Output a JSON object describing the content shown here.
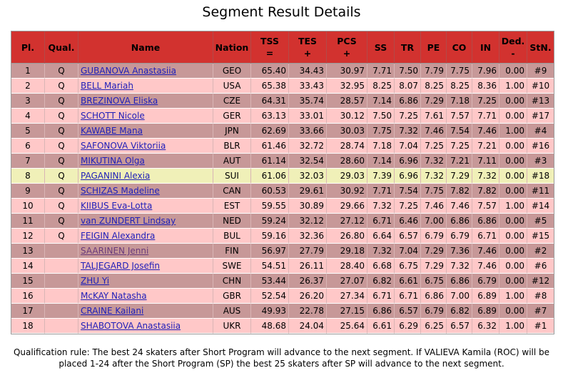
{
  "title": "Segment Result Details",
  "columns": [
    {
      "l1": "Pl.",
      "l2": ""
    },
    {
      "l1": "Qual.",
      "l2": ""
    },
    {
      "l1": "Name",
      "l2": ""
    },
    {
      "l1": "Nation",
      "l2": ""
    },
    {
      "l1": "TSS",
      "l2": "="
    },
    {
      "l1": "TES",
      "l2": "+"
    },
    {
      "l1": "PCS",
      "l2": "+"
    },
    {
      "l1": "SS",
      "l2": ""
    },
    {
      "l1": "TR",
      "l2": ""
    },
    {
      "l1": "PE",
      "l2": ""
    },
    {
      "l1": "CO",
      "l2": ""
    },
    {
      "l1": "IN",
      "l2": ""
    },
    {
      "l1": "Ded.",
      "l2": "-"
    },
    {
      "l1": "StN.",
      "l2": ""
    }
  ],
  "rows": [
    {
      "pl": "1",
      "qual": "Q",
      "name": "GUBANOVA Anastasiia",
      "nation": "GEO",
      "tss": "65.40",
      "tes": "34.43",
      "pcs": "30.97",
      "ss": "7.71",
      "tr": "7.50",
      "pe": "7.79",
      "co": "7.75",
      "in": "7.96",
      "ded": "0.00",
      "stn": "#9"
    },
    {
      "pl": "2",
      "qual": "Q",
      "name": "BELL Mariah",
      "nation": "USA",
      "tss": "65.38",
      "tes": "33.43",
      "pcs": "32.95",
      "ss": "8.25",
      "tr": "8.07",
      "pe": "8.25",
      "co": "8.25",
      "in": "8.36",
      "ded": "1.00",
      "stn": "#10"
    },
    {
      "pl": "3",
      "qual": "Q",
      "name": "BREZINOVA Eliska",
      "nation": "CZE",
      "tss": "64.31",
      "tes": "35.74",
      "pcs": "28.57",
      "ss": "7.14",
      "tr": "6.86",
      "pe": "7.29",
      "co": "7.18",
      "in": "7.25",
      "ded": "0.00",
      "stn": "#13"
    },
    {
      "pl": "4",
      "qual": "Q",
      "name": "SCHOTT Nicole",
      "nation": "GER",
      "tss": "63.13",
      "tes": "33.01",
      "pcs": "30.12",
      "ss": "7.50",
      "tr": "7.25",
      "pe": "7.61",
      "co": "7.57",
      "in": "7.71",
      "ded": "0.00",
      "stn": "#17"
    },
    {
      "pl": "5",
      "qual": "Q",
      "name": "KAWABE Mana",
      "nation": "JPN",
      "tss": "62.69",
      "tes": "33.66",
      "pcs": "30.03",
      "ss": "7.75",
      "tr": "7.32",
      "pe": "7.46",
      "co": "7.54",
      "in": "7.46",
      "ded": "1.00",
      "stn": "#4"
    },
    {
      "pl": "6",
      "qual": "Q",
      "name": "SAFONOVA Viktoriia",
      "nation": "BLR",
      "tss": "61.46",
      "tes": "32.72",
      "pcs": "28.74",
      "ss": "7.18",
      "tr": "7.04",
      "pe": "7.25",
      "co": "7.25",
      "in": "7.21",
      "ded": "0.00",
      "stn": "#16"
    },
    {
      "pl": "7",
      "qual": "Q",
      "name": "MIKUTINA Olga",
      "nation": "AUT",
      "tss": "61.14",
      "tes": "32.54",
      "pcs": "28.60",
      "ss": "7.14",
      "tr": "6.96",
      "pe": "7.32",
      "co": "7.21",
      "in": "7.11",
      "ded": "0.00",
      "stn": "#3"
    },
    {
      "pl": "8",
      "qual": "Q",
      "name": "PAGANINI Alexia",
      "nation": "SUI",
      "tss": "61.06",
      "tes": "32.03",
      "pcs": "29.03",
      "ss": "7.39",
      "tr": "6.96",
      "pe": "7.32",
      "co": "7.29",
      "in": "7.32",
      "ded": "0.00",
      "stn": "#18",
      "highlight": true
    },
    {
      "pl": "9",
      "qual": "Q",
      "name": "SCHIZAS Madeline",
      "nation": "CAN",
      "tss": "60.53",
      "tes": "29.61",
      "pcs": "30.92",
      "ss": "7.71",
      "tr": "7.54",
      "pe": "7.75",
      "co": "7.82",
      "in": "7.82",
      "ded": "0.00",
      "stn": "#11"
    },
    {
      "pl": "10",
      "qual": "Q",
      "name": "KIIBUS Eva-Lotta",
      "nation": "EST",
      "tss": "59.55",
      "tes": "30.89",
      "pcs": "29.66",
      "ss": "7.32",
      "tr": "7.25",
      "pe": "7.46",
      "co": "7.46",
      "in": "7.57",
      "ded": "1.00",
      "stn": "#14"
    },
    {
      "pl": "11",
      "qual": "Q",
      "name": "van ZUNDERT Lindsay",
      "nation": "NED",
      "tss": "59.24",
      "tes": "32.12",
      "pcs": "27.12",
      "ss": "6.71",
      "tr": "6.46",
      "pe": "7.00",
      "co": "6.86",
      "in": "6.86",
      "ded": "0.00",
      "stn": "#5"
    },
    {
      "pl": "12",
      "qual": "Q",
      "name": "FEIGIN Alexandra",
      "nation": "BUL",
      "tss": "59.16",
      "tes": "32.36",
      "pcs": "26.80",
      "ss": "6.64",
      "tr": "6.57",
      "pe": "6.79",
      "co": "6.79",
      "in": "6.71",
      "ded": "0.00",
      "stn": "#15"
    },
    {
      "pl": "13",
      "qual": "",
      "name": "SAARINEN Jenni",
      "nation": "FIN",
      "tss": "56.97",
      "tes": "27.79",
      "pcs": "29.18",
      "ss": "7.32",
      "tr": "7.04",
      "pe": "7.29",
      "co": "7.36",
      "in": "7.46",
      "ded": "0.00",
      "stn": "#2",
      "visited": true
    },
    {
      "pl": "14",
      "qual": "",
      "name": "TALJEGARD Josefin",
      "nation": "SWE",
      "tss": "54.51",
      "tes": "26.11",
      "pcs": "28.40",
      "ss": "6.68",
      "tr": "6.75",
      "pe": "7.29",
      "co": "7.32",
      "in": "7.46",
      "ded": "0.00",
      "stn": "#6"
    },
    {
      "pl": "15",
      "qual": "",
      "name": "ZHU Yi",
      "nation": "CHN",
      "tss": "53.44",
      "tes": "26.37",
      "pcs": "27.07",
      "ss": "6.82",
      "tr": "6.61",
      "pe": "6.75",
      "co": "6.86",
      "in": "6.79",
      "ded": "0.00",
      "stn": "#12"
    },
    {
      "pl": "16",
      "qual": "",
      "name": "McKAY Natasha",
      "nation": "GBR",
      "tss": "52.54",
      "tes": "26.20",
      "pcs": "27.34",
      "ss": "6.71",
      "tr": "6.71",
      "pe": "6.86",
      "co": "7.00",
      "in": "6.89",
      "ded": "1.00",
      "stn": "#8"
    },
    {
      "pl": "17",
      "qual": "",
      "name": "CRAINE Kailani",
      "nation": "AUS",
      "tss": "49.93",
      "tes": "22.78",
      "pcs": "27.15",
      "ss": "6.86",
      "tr": "6.57",
      "pe": "6.79",
      "co": "6.82",
      "in": "6.89",
      "ded": "0.00",
      "stn": "#7"
    },
    {
      "pl": "18",
      "qual": "",
      "name": "SHABOTOVA Anastasiia",
      "nation": "UKR",
      "tss": "48.68",
      "tes": "24.04",
      "pcs": "25.64",
      "ss": "6.61",
      "tr": "6.29",
      "pe": "6.25",
      "co": "6.57",
      "in": "6.32",
      "ded": "1.00",
      "stn": "#1"
    }
  ],
  "footer": {
    "line1": "Qualification rule: The best 24 skaters after Short Program will advance to the next segment. If VALIEVA Kamila (ROC) will be",
    "line2": "placed 1-24 after the Short Program (SP) the best 25 skaters after SP will advance to the next segment."
  }
}
